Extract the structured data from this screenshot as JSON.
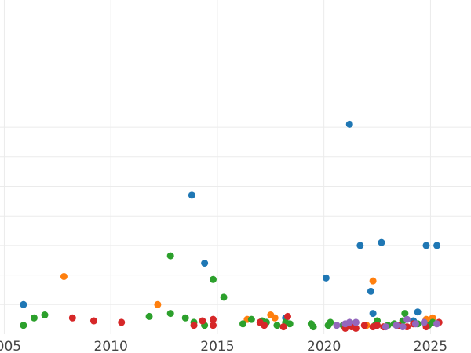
{
  "chart_data": {
    "type": "scatter",
    "title": "",
    "xlabel": "",
    "ylabel": "",
    "xlim": [
      2004.8,
      2026.9
    ],
    "ylim": [
      0,
      11.3
    ],
    "xticks": [
      2005,
      2010,
      2015,
      2020,
      2025
    ],
    "xtick_labels": [
      "2005",
      "2010",
      "2015",
      "2020",
      "2025"
    ],
    "yticks": [
      1,
      2,
      3,
      4,
      5,
      6,
      7
    ],
    "grid": true,
    "legend": "none",
    "series": [
      {
        "color": "#1f77b4",
        "points": [
          [
            2005.9,
            1.0
          ],
          [
            2013.8,
            4.7
          ],
          [
            2014.4,
            2.4
          ],
          [
            2018.2,
            0.55
          ],
          [
            2020.1,
            1.9
          ],
          [
            2021.2,
            7.1
          ],
          [
            2021.7,
            3.0
          ],
          [
            2022.2,
            1.45
          ],
          [
            2022.3,
            0.7
          ],
          [
            2022.7,
            3.1
          ],
          [
            2024.2,
            0.45
          ],
          [
            2024.4,
            0.75
          ],
          [
            2024.8,
            3.0
          ],
          [
            2025.3,
            3.0
          ]
        ]
      },
      {
        "color": "#ff7f0e",
        "points": [
          [
            2007.8,
            1.95
          ],
          [
            2012.2,
            1.0
          ],
          [
            2016.4,
            0.5
          ],
          [
            2017.5,
            0.65
          ],
          [
            2017.7,
            0.55
          ],
          [
            2022.0,
            0.3
          ],
          [
            2022.3,
            1.8
          ],
          [
            2024.8,
            0.5
          ],
          [
            2025.1,
            0.55
          ]
        ]
      },
      {
        "color": "#2ca02c",
        "points": [
          [
            2005.9,
            0.3
          ],
          [
            2006.4,
            0.55
          ],
          [
            2006.9,
            0.65
          ],
          [
            2011.8,
            0.6
          ],
          [
            2012.8,
            0.7
          ],
          [
            2012.8,
            2.65
          ],
          [
            2013.5,
            0.55
          ],
          [
            2013.9,
            0.4
          ],
          [
            2014.4,
            0.3
          ],
          [
            2014.8,
            1.85
          ],
          [
            2015.3,
            1.25
          ],
          [
            2016.2,
            0.35
          ],
          [
            2016.6,
            0.5
          ],
          [
            2017.1,
            0.45
          ],
          [
            2017.3,
            0.4
          ],
          [
            2017.8,
            0.3
          ],
          [
            2018.2,
            0.4
          ],
          [
            2018.4,
            0.35
          ],
          [
            2019.4,
            0.35
          ],
          [
            2019.5,
            0.25
          ],
          [
            2020.2,
            0.3
          ],
          [
            2020.3,
            0.4
          ],
          [
            2020.9,
            0.3
          ],
          [
            2021.3,
            0.35
          ],
          [
            2022.4,
            0.3
          ],
          [
            2022.5,
            0.45
          ],
          [
            2023.0,
            0.3
          ],
          [
            2023.3,
            0.35
          ],
          [
            2023.6,
            0.3
          ],
          [
            2023.7,
            0.45
          ],
          [
            2023.8,
            0.7
          ],
          [
            2024.4,
            0.35
          ],
          [
            2024.9,
            0.3
          ],
          [
            2025.1,
            0.4
          ]
        ]
      },
      {
        "color": "#d62728",
        "points": [
          [
            2008.2,
            0.55
          ],
          [
            2009.2,
            0.45
          ],
          [
            2010.5,
            0.4
          ],
          [
            2013.9,
            0.3
          ],
          [
            2014.3,
            0.45
          ],
          [
            2014.8,
            0.5
          ],
          [
            2014.8,
            0.3
          ],
          [
            2017.0,
            0.4
          ],
          [
            2017.2,
            0.3
          ],
          [
            2018.1,
            0.25
          ],
          [
            2018.3,
            0.6
          ],
          [
            2021.0,
            0.2
          ],
          [
            2021.3,
            0.25
          ],
          [
            2021.5,
            0.2
          ],
          [
            2021.9,
            0.3
          ],
          [
            2022.3,
            0.25
          ],
          [
            2022.5,
            0.3
          ],
          [
            2022.8,
            0.25
          ],
          [
            2023.5,
            0.3
          ],
          [
            2023.9,
            0.25
          ],
          [
            2024.2,
            0.35
          ],
          [
            2024.8,
            0.25
          ],
          [
            2025.4,
            0.4
          ]
        ]
      },
      {
        "color": "#9467bd",
        "points": [
          [
            2020.6,
            0.3
          ],
          [
            2021.0,
            0.35
          ],
          [
            2021.2,
            0.4
          ],
          [
            2021.5,
            0.4
          ],
          [
            2022.9,
            0.25
          ],
          [
            2023.4,
            0.3
          ],
          [
            2023.7,
            0.25
          ],
          [
            2023.9,
            0.5
          ],
          [
            2024.3,
            0.35
          ],
          [
            2024.7,
            0.4
          ],
          [
            2025.3,
            0.35
          ]
        ]
      }
    ]
  }
}
